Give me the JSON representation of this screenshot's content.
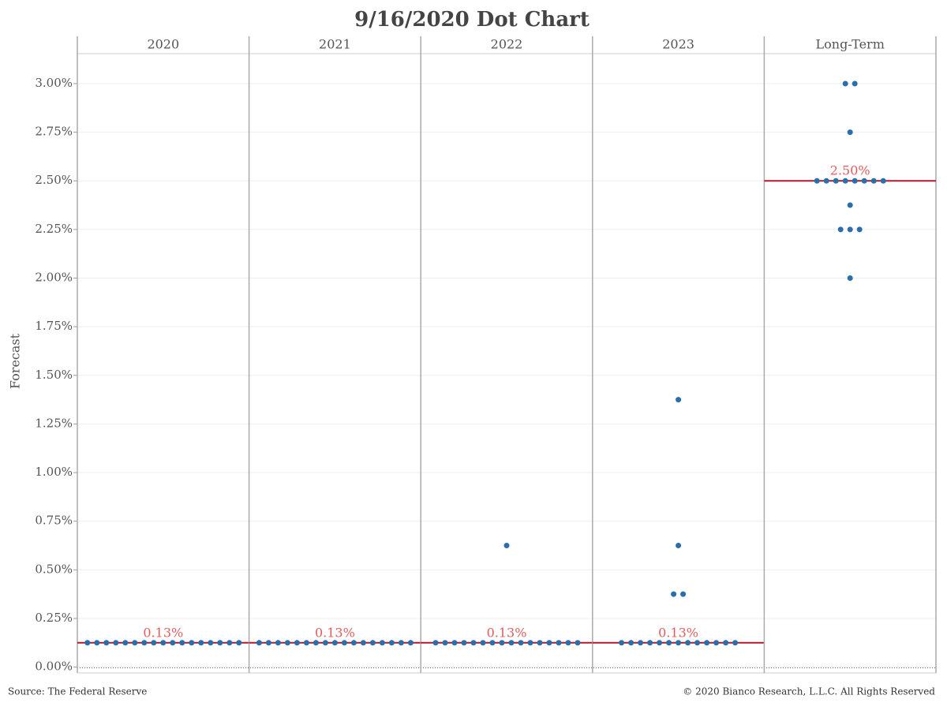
{
  "chart_data": {
    "type": "dot",
    "title": "9/16/2020 Dot Chart",
    "y_label": "Forecast",
    "source": "Source: The Federal Reserve",
    "copyright": "© 2020 Bianco Research, L.L.C. All Rights Reserved",
    "dot_color": "#2a6ead",
    "median_color": "#b2182b",
    "median_label_color": "#e05c5c",
    "grid": true,
    "ylim": [
      -0.03,
      3.154
    ],
    "yticks": [
      {
        "value": 0,
        "label": "0.00%"
      },
      {
        "value": 0.25,
        "label": "0.25%"
      },
      {
        "value": 0.5,
        "label": "0.50%"
      },
      {
        "value": 0.75,
        "label": "0.75%"
      },
      {
        "value": 1,
        "label": "1.00%"
      },
      {
        "value": 1.25,
        "label": "1.25%"
      },
      {
        "value": 1.5,
        "label": "1.50%"
      },
      {
        "value": 1.75,
        "label": "1.75%"
      },
      {
        "value": 2,
        "label": "2.00%"
      },
      {
        "value": 2.25,
        "label": "2.25%"
      },
      {
        "value": 2.5,
        "label": "2.50%"
      },
      {
        "value": 2.75,
        "label": "2.75%"
      },
      {
        "value": 3,
        "label": "3.00%"
      }
    ],
    "panels": [
      {
        "name": "2020",
        "values": [
          0.125,
          0.125,
          0.125,
          0.125,
          0.125,
          0.125,
          0.125,
          0.125,
          0.125,
          0.125,
          0.125,
          0.125,
          0.125,
          0.125,
          0.125,
          0.125,
          0.125
        ],
        "median": 0.125,
        "median_label": "0.13%"
      },
      {
        "name": "2021",
        "values": [
          0.125,
          0.125,
          0.125,
          0.125,
          0.125,
          0.125,
          0.125,
          0.125,
          0.125,
          0.125,
          0.125,
          0.125,
          0.125,
          0.125,
          0.125,
          0.125,
          0.125
        ],
        "median": 0.125,
        "median_label": "0.13%"
      },
      {
        "name": "2022",
        "values": [
          0.625,
          0.125,
          0.125,
          0.125,
          0.125,
          0.125,
          0.125,
          0.125,
          0.125,
          0.125,
          0.125,
          0.125,
          0.125,
          0.125,
          0.125,
          0.125,
          0.125
        ],
        "median": 0.125,
        "median_label": "0.13%"
      },
      {
        "name": "2023",
        "values": [
          1.375,
          0.625,
          0.375,
          0.375,
          0.125,
          0.125,
          0.125,
          0.125,
          0.125,
          0.125,
          0.125,
          0.125,
          0.125,
          0.125,
          0.125,
          0.125,
          0.125
        ],
        "median": 0.125,
        "median_label": "0.13%"
      },
      {
        "name": "Long-Term",
        "values": [
          3,
          3,
          2.75,
          2.5,
          2.5,
          2.5,
          2.5,
          2.5,
          2.5,
          2.5,
          2.5,
          2.375,
          2.25,
          2.25,
          2.25,
          2
        ],
        "median": 2.5,
        "median_label": "2.50%"
      }
    ]
  }
}
